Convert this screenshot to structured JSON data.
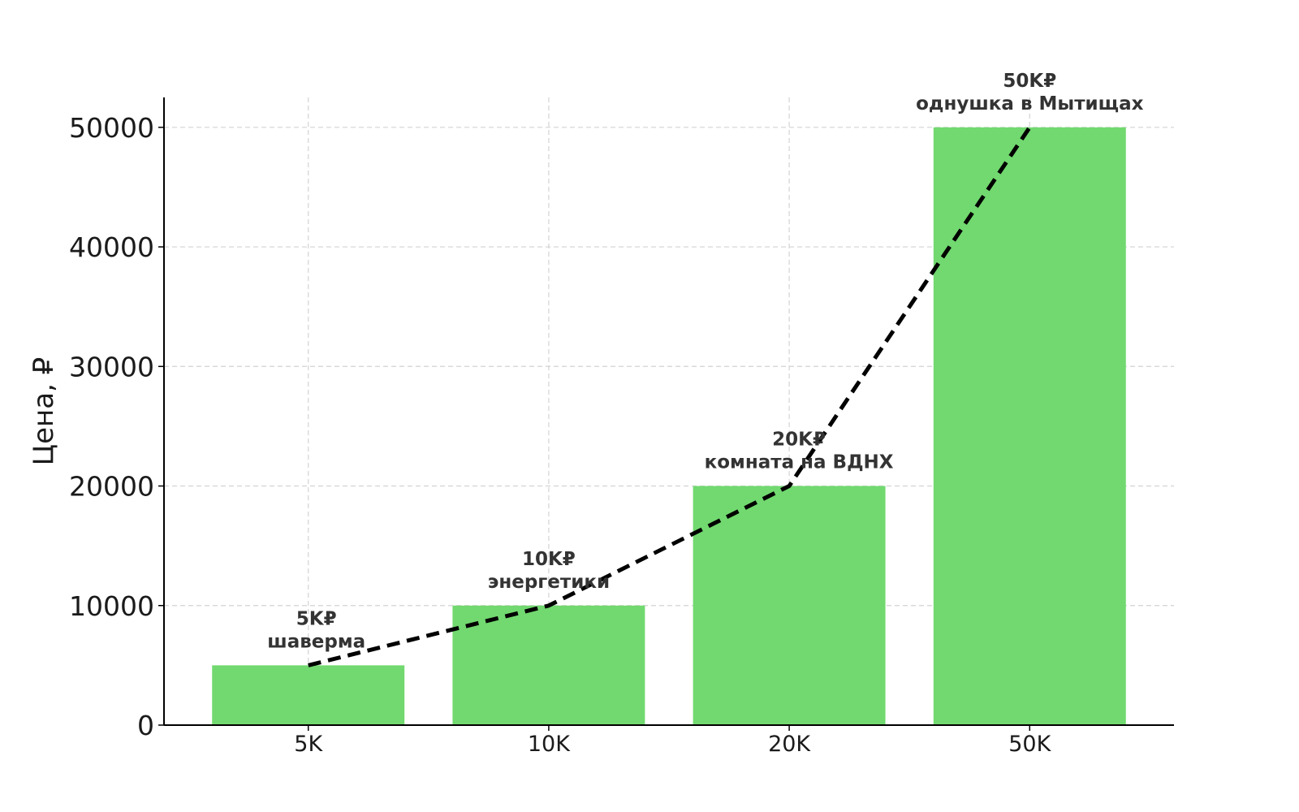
{
  "chart_data": {
    "type": "bar",
    "categories": [
      "5K",
      "10K",
      "20K",
      "50K"
    ],
    "values": [
      5000,
      10000,
      20000,
      50000
    ],
    "annotations": [
      {
        "value_label": "5K₽",
        "caption": "шаверма"
      },
      {
        "value_label": "10K₽",
        "caption": "энергетики"
      },
      {
        "value_label": "20K₽",
        "caption": "комната на ВДНХ"
      },
      {
        "value_label": "50K₽",
        "caption": "однушка в Мытищах"
      }
    ],
    "line_overlay": {
      "style": "dashed",
      "color": "#000000",
      "values": [
        5000,
        10000,
        20000,
        50000
      ]
    },
    "title": "",
    "xlabel": "",
    "ylabel": "Цена, ₽",
    "ylim": [
      0,
      52500
    ],
    "yticks": [
      0,
      10000,
      20000,
      30000,
      40000,
      50000
    ],
    "ytick_labels": [
      "0",
      "10000",
      "20000",
      "30000",
      "40000",
      "50000"
    ],
    "grid": true,
    "bar_color": "#71d96f",
    "grid_color": "#d3d3d3",
    "axis_color": "#000000"
  }
}
